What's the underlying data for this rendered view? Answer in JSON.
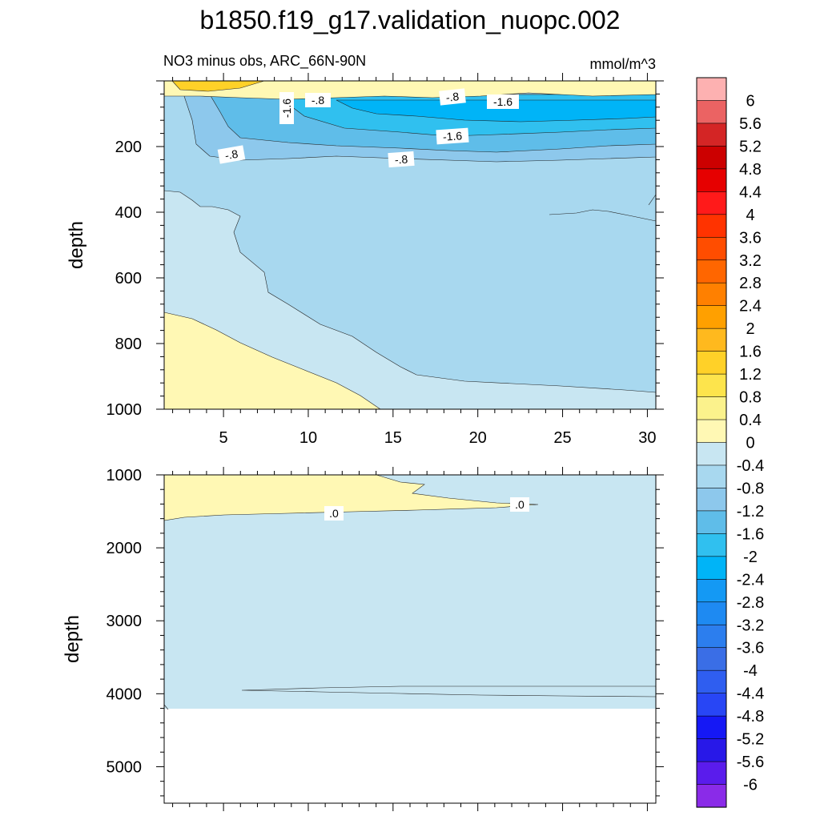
{
  "title": "b1850.f19_g17.validation_nuopc.002",
  "chart_data": {
    "type": "contour",
    "subtitle_left": "NO3 minus obs, ARC_66N-90N",
    "subtitle_right": "mmol/m^3",
    "panels": [
      {
        "name": "upper",
        "ylabel": "depth",
        "xlim": [
          1.5,
          30.5
        ],
        "ylim": [
          0,
          1000
        ],
        "y_reversed": true,
        "x_ticks": [
          "5",
          "10",
          "15",
          "20",
          "25",
          "30"
        ],
        "y_ticks": [
          "200",
          "400",
          "600",
          "800",
          "1000"
        ],
        "contour_labels": [
          "-1.6",
          "-.8",
          "-.8",
          "-1.6",
          "-1.6",
          "-.8",
          "-.8"
        ]
      },
      {
        "name": "lower",
        "ylabel": "depth",
        "xlim": [
          1.5,
          30.5
        ],
        "ylim": [
          1000,
          5500
        ],
        "y_reversed": true,
        "y_ticks": [
          "1000",
          "2000",
          "3000",
          "4000",
          "5000"
        ],
        "contour_labels": [
          ".0",
          ".0"
        ]
      }
    ],
    "colorbar": {
      "labels": [
        "6",
        "5.6",
        "5.2",
        "4.8",
        "4.4",
        "4",
        "3.6",
        "3.2",
        "2.8",
        "2.4",
        "2",
        "1.6",
        "1.2",
        "0.8",
        "0.4",
        "0",
        "-0.4",
        "-0.8",
        "-1.2",
        "-1.6",
        "-2",
        "-2.4",
        "-2.8",
        "-3.2",
        "-3.6",
        "-4",
        "-4.4",
        "-4.8",
        "-5.2",
        "-5.6",
        "-6"
      ],
      "colors": [
        "#fdb1b1",
        "#eb6363",
        "#d42525",
        "#cc0000",
        "#e60000",
        "#ff1a1a",
        "#ff3300",
        "#ff4d00",
        "#ff6600",
        "#ff8000",
        "#ffa000",
        "#ffb91e",
        "#ffd128",
        "#fde44c",
        "#fbf28c",
        "#fff8b4",
        "#c8e6f2",
        "#a8d8ef",
        "#8dc8ec",
        "#5fbde9",
        "#30c0ef",
        "#00b4f7",
        "#1499f4",
        "#1e8af2",
        "#2c7eee",
        "#3a6ee6",
        "#2f5ef0",
        "#2846f5",
        "#1518f5",
        "#2818e8",
        "#5a1cec",
        "#8a2be8"
      ]
    }
  }
}
